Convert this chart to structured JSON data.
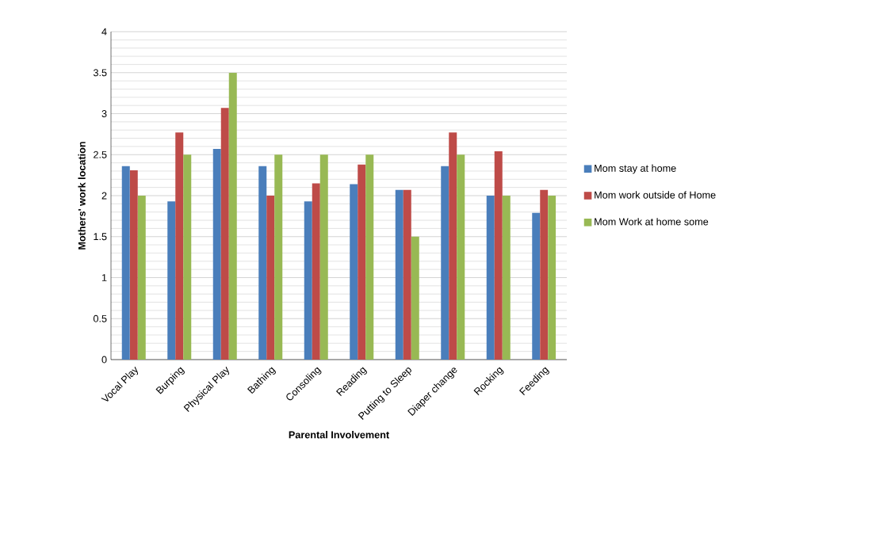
{
  "chart_data": {
    "type": "bar",
    "xlabel": "Parental Involvement",
    "ylabel": "Mothers' work location",
    "categories": [
      "Vocal Play",
      "Burping",
      "Physical Play",
      "Bathing",
      "Consoling",
      "Reading",
      "Putting to Sleep",
      "Diaper change",
      "Rocking",
      "Feeding"
    ],
    "series": [
      {
        "name": "Mom stay at home",
        "color": "#4a7ebb",
        "values": [
          2.36,
          1.93,
          2.57,
          2.36,
          1.93,
          2.14,
          2.07,
          2.36,
          2.0,
          1.79
        ]
      },
      {
        "name": "Mom work outside of Home",
        "color": "#be4b48",
        "values": [
          2.31,
          2.77,
          3.07,
          2.0,
          2.15,
          2.38,
          2.07,
          2.77,
          2.54,
          2.07
        ]
      },
      {
        "name": "Mom Work at home some",
        "color": "#98b954",
        "values": [
          2.0,
          2.5,
          3.5,
          2.5,
          2.5,
          2.5,
          1.5,
          2.5,
          2.0,
          2.0
        ]
      }
    ],
    "ylim": [
      0,
      4
    ],
    "yticks": [
      0,
      0.5,
      1,
      1.5,
      2,
      2.5,
      3,
      3.5,
      4
    ],
    "grid": "y",
    "legend": "right"
  }
}
